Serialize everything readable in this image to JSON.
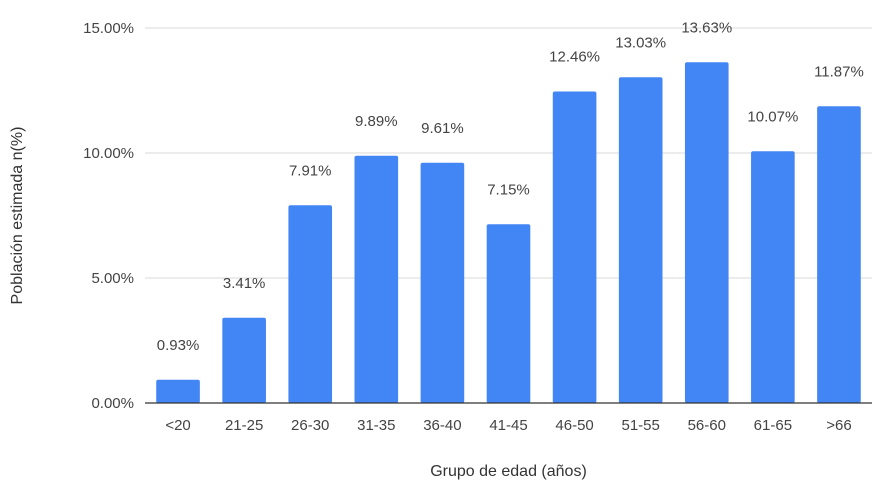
{
  "chart_data": {
    "type": "bar",
    "xlabel": "Grupo de edad (años)",
    "ylabel": "Población estimada n(%)",
    "categories": [
      "<20",
      "21-25",
      "26-30",
      "31-35",
      "36-40",
      "41-45",
      "46-50",
      "51-55",
      "56-60",
      "61-65",
      ">66"
    ],
    "values": [
      0.93,
      3.41,
      7.91,
      9.89,
      9.61,
      7.15,
      12.46,
      13.03,
      13.63,
      10.07,
      11.87
    ],
    "data_labels": [
      "0.93%",
      "3.41%",
      "7.91%",
      "9.89%",
      "9.61%",
      "7.15%",
      "12.46%",
      "13.03%",
      "13.63%",
      "10.07%",
      "11.87%"
    ],
    "yticks": [
      0,
      5,
      10,
      15
    ],
    "ytick_labels": [
      "0.00%",
      "5.00%",
      "10.00%",
      "15.00%"
    ],
    "ylim": [
      0,
      15
    ],
    "grid": true,
    "legend": "none",
    "bar_color": "#4285f4"
  }
}
